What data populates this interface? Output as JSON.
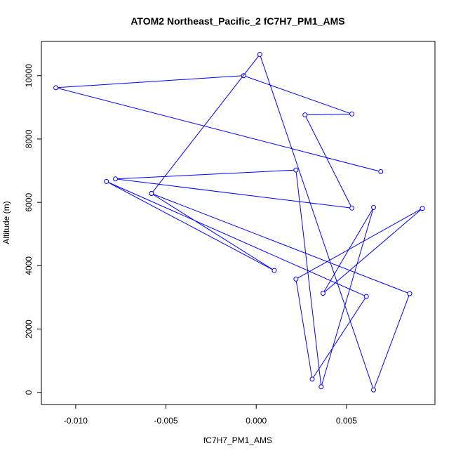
{
  "chart_data": {
    "type": "line",
    "title": "ATOM2 Northeast_Pacific_2 fC7H7_PM1_AMS",
    "xlabel": "fC7H7_PM1_AMS",
    "ylabel": "Altitude (m)",
    "xlim": [
      -0.0119,
      0.0099
    ],
    "ylim": [
      -380,
      11080
    ],
    "xticks": [
      -0.01,
      -0.005,
      0.0,
      0.005
    ],
    "xtick_labels": [
      "-0.010",
      "-0.005",
      "0.000",
      "0.005"
    ],
    "yticks": [
      0,
      2000,
      4000,
      6000,
      8000,
      10000
    ],
    "ytick_labels": [
      "0",
      "2000",
      "4000",
      "6000",
      "8000",
      "10000"
    ],
    "color": "#0000ff",
    "marker": "open-circle",
    "grid": false,
    "legend": "none",
    "series": [
      {
        "x": [
          0.0069,
          -0.0111,
          -0.0007,
          0.0053,
          0.0027,
          0.0053,
          -0.0078,
          0.0022,
          0.0036,
          0.0065,
          0.0037,
          0.0092,
          0.0022,
          0.0031,
          0.0061,
          -0.0083,
          0.001,
          -0.0058,
          0.0002,
          0.0065,
          0.0085,
          -0.0058
        ],
        "y": [
          6970,
          9620,
          10000,
          8790,
          8760,
          5820,
          6740,
          7020,
          180,
          5840,
          3130,
          5810,
          3580,
          420,
          3030,
          6660,
          3850,
          6280,
          10670,
          80,
          3120,
          6280
        ]
      }
    ]
  }
}
